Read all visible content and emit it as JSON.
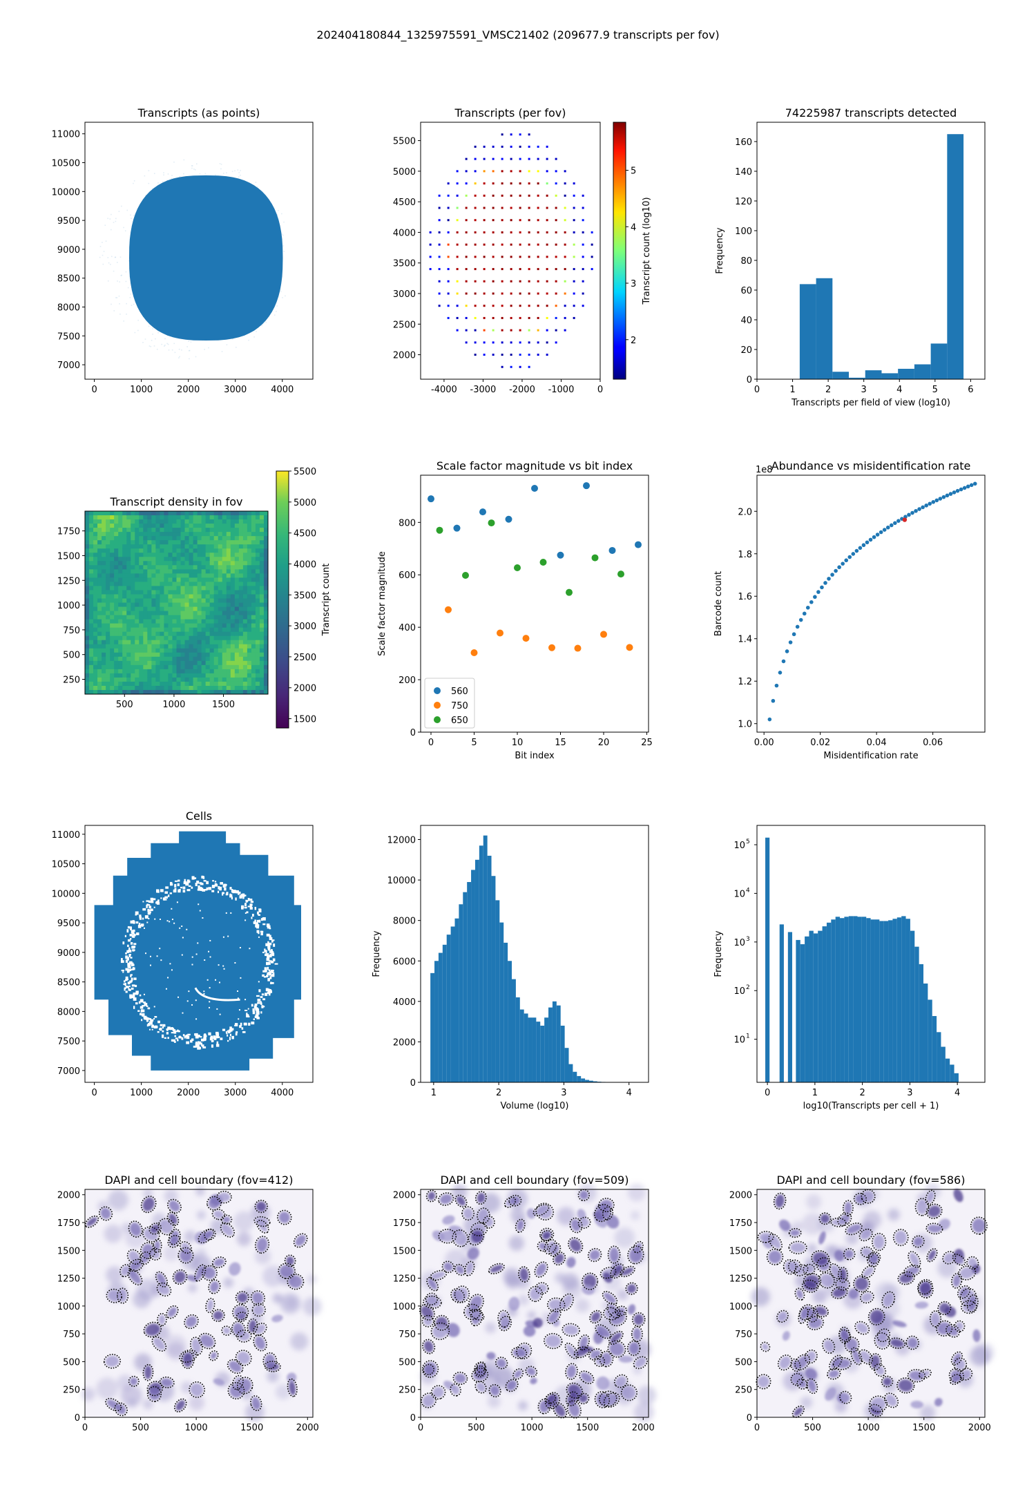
{
  "figure": {
    "suptitle": "202404180844_1325975591_VMSC21402 (209677.9 transcripts per fov)"
  },
  "chart_data": [
    {
      "id": "transcripts_points",
      "type": "scatter",
      "title": "Transcripts (as points)",
      "xlabel": "",
      "ylabel": "",
      "xlim": [
        -200,
        4650
      ],
      "ylim": [
        6750,
        11200
      ],
      "xticks": [
        0,
        1000,
        2000,
        3000,
        4000
      ],
      "yticks": [
        7000,
        7500,
        8000,
        8500,
        9000,
        9500,
        10000,
        10500,
        11000
      ],
      "tissue_region": {
        "x_range": [
          740,
          4010
        ],
        "y_range": [
          7420,
          10280
        ]
      },
      "sparse_background_region": {
        "x_range": [
          0,
          4050
        ],
        "y_range": [
          7100,
          10600
        ]
      },
      "color": "#1f77b4"
    },
    {
      "id": "transcripts_per_fov",
      "type": "scatter",
      "title": "Transcripts (per fov)",
      "xlabel": "",
      "ylabel": "",
      "xlim": [
        -4600,
        0
      ],
      "ylim": [
        1600,
        5800
      ],
      "xticks": [
        -4000,
        -3000,
        -2000,
        -1000,
        0
      ],
      "yticks": [
        2000,
        2500,
        3000,
        3500,
        4000,
        4500,
        5000,
        5500
      ],
      "fov_grid": {
        "x_range": [
          -4350,
          -200
        ],
        "y_range": [
          1800,
          5600
        ]
      },
      "colorbar": {
        "label": "Transcript count (log10)",
        "range": [
          1.3,
          5.85
        ],
        "ticks": [
          2,
          3,
          4,
          5
        ],
        "colormap": "jet"
      }
    },
    {
      "id": "transcripts_hist",
      "type": "bar",
      "title": "74225987 transcripts detected",
      "xlabel": "Transcripts per field of view (log10)",
      "ylabel": "Frequency",
      "xlim": [
        0,
        6.4
      ],
      "ylim": [
        0,
        173
      ],
      "xticks": [
        0,
        1,
        2,
        3,
        4,
        5,
        6
      ],
      "yticks": [
        0,
        20,
        40,
        60,
        80,
        100,
        120,
        140,
        160
      ],
      "bin_edges": [
        1.2,
        1.66,
        2.12,
        2.58,
        3.04,
        3.5,
        3.96,
        4.42,
        4.88,
        5.34,
        5.8
      ],
      "values": [
        64,
        68,
        5,
        1,
        6,
        4,
        7,
        10,
        24,
        165
      ],
      "color": "#1f77b4"
    },
    {
      "id": "density_in_fov",
      "type": "heatmap",
      "title": "Transcript density in fov",
      "xlabel": "",
      "ylabel": "",
      "xlim": [
        100,
        1950
      ],
      "ylim": [
        100,
        1950
      ],
      "xticks": [
        500,
        1000,
        1500
      ],
      "yticks": [
        250,
        500,
        750,
        1000,
        1250,
        1500,
        1750
      ],
      "colorbar": {
        "label": "Transcript count",
        "range": [
          1350,
          5500
        ],
        "ticks": [
          1500,
          2000,
          2500,
          3000,
          3500,
          4000,
          4500,
          5000,
          5500
        ],
        "colormap": "viridis"
      }
    },
    {
      "id": "scale_factor",
      "type": "scatter",
      "title": "Scale factor magnitude vs bit index",
      "xlabel": "Bit index",
      "ylabel": "Scale factor magnitude",
      "xlim": [
        -1.2,
        25.2
      ],
      "ylim": [
        0,
        980
      ],
      "xticks": [
        0,
        5,
        10,
        15,
        20,
        25
      ],
      "yticks": [
        0,
        200,
        400,
        600,
        800
      ],
      "legend": "lower-left",
      "series": [
        {
          "name": "560",
          "color": "#1f77b4",
          "x": [
            0,
            3,
            6,
            9,
            12,
            15,
            18,
            21,
            24
          ],
          "y": [
            890,
            778,
            840,
            812,
            930,
            675,
            940,
            693,
            715
          ]
        },
        {
          "name": "750",
          "color": "#ff7f0e",
          "x": [
            2,
            5,
            8,
            11,
            14,
            17,
            20,
            23
          ],
          "y": [
            467,
            303,
            378,
            358,
            322,
            320,
            373,
            323
          ]
        },
        {
          "name": "650",
          "color": "#2ca02c",
          "x": [
            1,
            4,
            7,
            10,
            13,
            16,
            19,
            22
          ],
          "y": [
            770,
            598,
            798,
            627,
            648,
            533,
            665,
            603
          ]
        }
      ]
    },
    {
      "id": "abundance_misid",
      "type": "scatter",
      "title": "Abundance vs misidentification rate",
      "xlabel": "Misidentification rate",
      "ylabel": "Barcode count",
      "y_offset_label": "1e8",
      "xlim": [
        -0.0025,
        0.0785
      ],
      "ylim": [
        0.96,
        2.17
      ],
      "xticks": [
        0.0,
        0.02,
        0.04,
        0.06
      ],
      "xtick_labels": [
        "0.00",
        "0.02",
        "0.04",
        "0.06"
      ],
      "yticks": [
        1.0,
        1.2,
        1.4,
        1.6,
        1.8,
        2.0
      ],
      "ytick_labels": [
        "1.0",
        "1.2",
        "1.4",
        "1.6",
        "1.8",
        "2.0"
      ],
      "curve": {
        "x_start": 0.002,
        "x_end": 0.075,
        "y_start": 1.02,
        "y_end": 2.13,
        "n_points": 60
      },
      "highlight": {
        "x": 0.05,
        "y": 1.96,
        "color": "#d62728"
      },
      "color": "#1f77b4"
    },
    {
      "id": "cells",
      "type": "scatter",
      "title": "Cells",
      "xlabel": "",
      "ylabel": "",
      "xlim": [
        -200,
        4650
      ],
      "ylim": [
        6800,
        11150
      ],
      "xticks": [
        0,
        1000,
        2000,
        3000,
        4000
      ],
      "yticks": [
        7000,
        7500,
        8000,
        8500,
        9000,
        9500,
        10000,
        10500,
        11000
      ],
      "color": "#1f77b4"
    },
    {
      "id": "volume_hist",
      "type": "bar",
      "title": "",
      "xlabel": "Volume (log10)",
      "ylabel": "Frequency",
      "xlim": [
        0.8,
        4.3
      ],
      "ylim": [
        0,
        12700
      ],
      "xticks": [
        1,
        2,
        3,
        4
      ],
      "yticks": [
        0,
        2000,
        4000,
        6000,
        8000,
        10000,
        12000
      ],
      "x_start": 0.95,
      "bin_width": 0.0625,
      "values": [
        5400,
        6000,
        6400,
        6800,
        7300,
        7700,
        8100,
        8800,
        9400,
        9900,
        10500,
        11000,
        11700,
        12200,
        11200,
        10200,
        9000,
        7900,
        6900,
        6000,
        5100,
        4200,
        3600,
        3400,
        3200,
        3200,
        3000,
        2800,
        3200,
        3700,
        4000,
        3800,
        2800,
        1700,
        900,
        520,
        310,
        190,
        120,
        80,
        50,
        30,
        20,
        10
      ],
      "color": "#1f77b4"
    },
    {
      "id": "transcripts_per_cell",
      "type": "bar",
      "title": "",
      "xlabel": "log10(Transcripts per cell + 1)",
      "ylabel": "Frequency",
      "log_y": true,
      "xlim": [
        -0.22,
        4.58
      ],
      "ylim": [
        1.3,
        250000
      ],
      "xticks": [
        0,
        1,
        2,
        3,
        4
      ],
      "yticks": [
        10,
        100,
        1000,
        10000,
        100000
      ],
      "ytick_labels": [
        "10",
        "10",
        "10",
        "10",
        "10"
      ],
      "ytick_exponents": [
        "1",
        "2",
        "3",
        "4",
        "5"
      ],
      "spikes": [
        {
          "x": 0.0,
          "y": 140000
        },
        {
          "x": 0.301,
          "y": 2300
        },
        {
          "x": 0.477,
          "y": 1600
        }
      ],
      "x_start": 0.6,
      "bin_width": 0.0926,
      "values": [
        1100,
        900,
        1300,
        1700,
        1500,
        1700,
        2100,
        2500,
        2900,
        3300,
        3100,
        3300,
        3400,
        3400,
        3300,
        3300,
        3100,
        2900,
        2900,
        2700,
        2700,
        2800,
        3000,
        3200,
        3400,
        3000,
        1700,
        800,
        350,
        140,
        65,
        30,
        14,
        7,
        4,
        3,
        2
      ],
      "color": "#1f77b4"
    },
    {
      "id": "dapi_412",
      "type": "heatmap",
      "title": "DAPI and cell boundary (fov=412)",
      "xlabel": "",
      "ylabel": "",
      "xlim": [
        0,
        2048
      ],
      "ylim": [
        0,
        2048
      ],
      "xticks": [
        0,
        500,
        1000,
        1500,
        2000
      ],
      "yticks": [
        0,
        250,
        500,
        750,
        1000,
        1250,
        1500,
        1750,
        2000
      ],
      "n_nuclei": 95
    },
    {
      "id": "dapi_509",
      "type": "heatmap",
      "title": "DAPI and cell boundary (fov=509)",
      "xlabel": "",
      "ylabel": "",
      "xlim": [
        0,
        2048
      ],
      "ylim": [
        0,
        2048
      ],
      "xticks": [
        0,
        500,
        1000,
        1500,
        2000
      ],
      "yticks": [
        0,
        250,
        500,
        750,
        1000,
        1250,
        1500,
        1750,
        2000
      ],
      "n_nuclei": 150
    },
    {
      "id": "dapi_586",
      "type": "heatmap",
      "title": "DAPI and cell boundary (fov=586)",
      "xlabel": "",
      "ylabel": "",
      "xlim": [
        0,
        2048
      ],
      "ylim": [
        0,
        2048
      ],
      "xticks": [
        0,
        500,
        1000,
        1500,
        2000
      ],
      "yticks": [
        0,
        250,
        500,
        750,
        1000,
        1250,
        1500,
        1750,
        2000
      ],
      "n_nuclei": 130
    }
  ]
}
